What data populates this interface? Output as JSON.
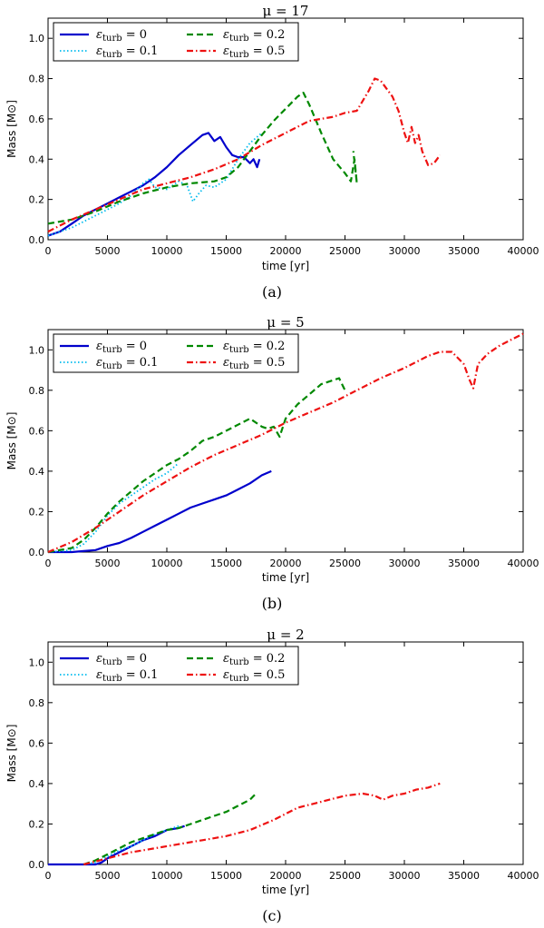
{
  "chart_data": [
    {
      "type": "line",
      "title": "μ = 17",
      "xlabel": "time [yr]",
      "ylabel": "Mass [M⊙]",
      "xlim": [
        0,
        40000
      ],
      "ylim": [
        0,
        1.1
      ],
      "xticks": [
        "0",
        "5000",
        "10000",
        "15000",
        "20000",
        "25000",
        "30000",
        "35000",
        "40000"
      ],
      "yticks": [
        "0.0",
        "0.2",
        "0.4",
        "0.6",
        "0.8",
        "1.0"
      ],
      "caption": "(a)",
      "series": [
        {
          "name": "ε_turb = 0",
          "legend_symbol": "ε",
          "legend_sub": "turb",
          "legend_value": " = 0",
          "color": "#0000cc",
          "style": "solid",
          "x": [
            0,
            1000,
            2000,
            3000,
            4000,
            5000,
            6000,
            7000,
            8000,
            9000,
            10000,
            11000,
            12000,
            13000,
            13500,
            14000,
            14500,
            15000,
            15500,
            16000,
            16500,
            17000,
            17300,
            17600,
            17800
          ],
          "y": [
            0.02,
            0.04,
            0.08,
            0.12,
            0.15,
            0.18,
            0.21,
            0.24,
            0.27,
            0.31,
            0.36,
            0.42,
            0.47,
            0.52,
            0.53,
            0.49,
            0.51,
            0.46,
            0.42,
            0.41,
            0.41,
            0.38,
            0.4,
            0.36,
            0.4
          ]
        },
        {
          "name": "ε_turb = 0.1",
          "legend_symbol": "ε",
          "legend_sub": "turb",
          "legend_value": " = 0.1",
          "color": "#00bbee",
          "style": "dotted",
          "x": [
            0,
            2000,
            4000,
            6000,
            7000,
            8000,
            8500,
            9000,
            10000,
            11000,
            11700,
            12200,
            12700,
            13300,
            14000,
            15000,
            16000,
            17000,
            18000
          ],
          "y": [
            0.02,
            0.06,
            0.12,
            0.18,
            0.22,
            0.28,
            0.3,
            0.26,
            0.25,
            0.29,
            0.27,
            0.19,
            0.23,
            0.27,
            0.26,
            0.3,
            0.4,
            0.48,
            0.53
          ]
        },
        {
          "name": "ε_turb = 0.2",
          "legend_symbol": "ε",
          "legend_sub": "turb",
          "legend_value": " = 0.2",
          "color": "#008800",
          "style": "dashed",
          "x": [
            0,
            2000,
            4000,
            6000,
            8000,
            10000,
            12000,
            14000,
            15000,
            16000,
            17000,
            18000,
            19000,
            20000,
            21000,
            21500,
            22000,
            23000,
            24000,
            25000,
            25500,
            25800,
            26000,
            25700
          ],
          "y": [
            0.08,
            0.1,
            0.14,
            0.19,
            0.23,
            0.26,
            0.28,
            0.29,
            0.31,
            0.36,
            0.44,
            0.52,
            0.59,
            0.65,
            0.71,
            0.73,
            0.67,
            0.53,
            0.4,
            0.33,
            0.29,
            0.4,
            0.28,
            0.44
          ]
        },
        {
          "name": "ε_turb = 0.5",
          "legend_symbol": "ε",
          "legend_sub": "turb",
          "legend_value": " = 0.5",
          "color": "#ee1111",
          "style": "dashdot",
          "x": [
            0,
            2000,
            4000,
            6000,
            8000,
            10000,
            12000,
            14000,
            16000,
            18000,
            20000,
            22000,
            24000,
            25000,
            26000,
            27000,
            27500,
            28000,
            29000,
            29500,
            30000,
            30300,
            30600,
            30900,
            31200,
            31500,
            32000,
            32500,
            33000
          ],
          "y": [
            0.04,
            0.1,
            0.15,
            0.2,
            0.25,
            0.28,
            0.31,
            0.35,
            0.4,
            0.47,
            0.53,
            0.59,
            0.61,
            0.63,
            0.64,
            0.74,
            0.8,
            0.79,
            0.71,
            0.64,
            0.53,
            0.48,
            0.56,
            0.48,
            0.52,
            0.44,
            0.37,
            0.38,
            0.42
          ]
        }
      ]
    },
    {
      "type": "line",
      "title": "μ = 5",
      "xlabel": "time [yr]",
      "ylabel": "Mass [M⊙]",
      "xlim": [
        0,
        40000
      ],
      "ylim": [
        0,
        1.1
      ],
      "xticks": [
        "0",
        "5000",
        "10000",
        "15000",
        "20000",
        "25000",
        "30000",
        "35000",
        "40000"
      ],
      "yticks": [
        "0.0",
        "0.2",
        "0.4",
        "0.6",
        "0.8",
        "1.0"
      ],
      "caption": "(b)",
      "series": [
        {
          "name": "ε_turb = 0",
          "legend_symbol": "ε",
          "legend_sub": "turb",
          "legend_value": " = 0",
          "color": "#0000cc",
          "style": "solid",
          "x": [
            0,
            2000,
            3000,
            4000,
            5000,
            6000,
            7000,
            8000,
            9000,
            10000,
            11000,
            12000,
            13000,
            14000,
            15000,
            16000,
            17000,
            18000,
            18800
          ],
          "y": [
            0.0,
            0.0,
            0.005,
            0.01,
            0.03,
            0.045,
            0.07,
            0.1,
            0.13,
            0.16,
            0.19,
            0.22,
            0.24,
            0.26,
            0.28,
            0.31,
            0.34,
            0.38,
            0.4
          ]
        },
        {
          "name": "ε_turb = 0.1",
          "legend_symbol": "ε",
          "legend_sub": "turb",
          "legend_value": " = 0.1",
          "color": "#00bbee",
          "style": "dotted",
          "x": [
            0,
            2000,
            3000,
            4000,
            5000,
            6000,
            7000,
            8000,
            9000,
            10000,
            11000
          ],
          "y": [
            0.0,
            0.01,
            0.04,
            0.1,
            0.18,
            0.24,
            0.28,
            0.32,
            0.36,
            0.39,
            0.44
          ]
        },
        {
          "name": "ε_turb = 0.2",
          "legend_symbol": "ε",
          "legend_sub": "turb",
          "legend_value": " = 0.2",
          "color": "#008800",
          "style": "dashed",
          "x": [
            0,
            2000,
            3000,
            4000,
            5000,
            6000,
            7000,
            8000,
            9000,
            10000,
            11000,
            12000,
            13000,
            14000,
            15000,
            16000,
            17000,
            18000,
            18500,
            19000,
            19500,
            20000,
            21000,
            22000,
            23000,
            24000,
            24500,
            25000
          ],
          "y": [
            0.0,
            0.02,
            0.06,
            0.12,
            0.19,
            0.25,
            0.3,
            0.35,
            0.39,
            0.43,
            0.46,
            0.5,
            0.55,
            0.57,
            0.6,
            0.63,
            0.66,
            0.62,
            0.61,
            0.62,
            0.57,
            0.66,
            0.73,
            0.78,
            0.83,
            0.85,
            0.86,
            0.8
          ]
        },
        {
          "name": "ε_turb = 0.5",
          "legend_symbol": "ε",
          "legend_sub": "turb",
          "legend_value": " = 0.5",
          "color": "#ee1111",
          "style": "dashdot",
          "x": [
            0,
            2000,
            4000,
            6000,
            8000,
            10000,
            12000,
            14000,
            16000,
            18000,
            20000,
            22000,
            24000,
            26000,
            28000,
            30000,
            32000,
            33000,
            34000,
            35000,
            35500,
            35800,
            36200,
            37000,
            38000,
            39000,
            40000
          ],
          "y": [
            0.0,
            0.05,
            0.12,
            0.2,
            0.28,
            0.35,
            0.42,
            0.48,
            0.53,
            0.58,
            0.64,
            0.69,
            0.74,
            0.8,
            0.86,
            0.91,
            0.97,
            0.99,
            0.99,
            0.93,
            0.85,
            0.81,
            0.93,
            0.98,
            1.02,
            1.05,
            1.08
          ]
        }
      ]
    },
    {
      "type": "line",
      "title": "μ = 2",
      "xlabel": "time [yr]",
      "ylabel": "Mass [M⊙]",
      "xlim": [
        0,
        40000
      ],
      "ylim": [
        0,
        1.1
      ],
      "xticks": [
        "0",
        "5000",
        "10000",
        "15000",
        "20000",
        "25000",
        "30000",
        "35000",
        "40000"
      ],
      "yticks": [
        "0.0",
        "0.2",
        "0.4",
        "0.6",
        "0.8",
        "1.0"
      ],
      "caption": "(c)",
      "series": [
        {
          "name": "ε_turb = 0",
          "legend_symbol": "ε",
          "legend_sub": "turb",
          "legend_value": " = 0",
          "color": "#0000cc",
          "style": "solid",
          "x": [
            0,
            3000,
            4000,
            4500,
            5000,
            6000,
            7000,
            8000,
            9000,
            10000,
            11000,
            11500
          ],
          "y": [
            0.0,
            0.0,
            0.0,
            0.01,
            0.03,
            0.06,
            0.09,
            0.12,
            0.14,
            0.17,
            0.18,
            0.19
          ]
        },
        {
          "name": "ε_turb = 0.1",
          "legend_symbol": "ε",
          "legend_sub": "turb",
          "legend_value": " = 0.1",
          "color": "#00bbee",
          "style": "dotted",
          "x": [
            3000,
            4000,
            5000,
            6000,
            7000,
            8000,
            9000,
            10000,
            11000
          ],
          "y": [
            0.0,
            0.01,
            0.04,
            0.07,
            0.09,
            0.12,
            0.15,
            0.17,
            0.19
          ]
        },
        {
          "name": "ε_turb = 0.2",
          "legend_symbol": "ε",
          "legend_sub": "turb",
          "legend_value": " = 0.2",
          "color": "#008800",
          "style": "dashed",
          "x": [
            3000,
            4000,
            5000,
            6000,
            7000,
            8000,
            9000,
            10000,
            11000,
            12000,
            13000,
            14000,
            15000,
            16000,
            17000,
            17500
          ],
          "y": [
            0.0,
            0.02,
            0.05,
            0.08,
            0.11,
            0.13,
            0.15,
            0.17,
            0.18,
            0.2,
            0.22,
            0.24,
            0.26,
            0.29,
            0.32,
            0.35
          ]
        },
        {
          "name": "ε_turb = 0.5",
          "legend_symbol": "ε",
          "legend_sub": "turb",
          "legend_value": " = 0.5",
          "color": "#ee1111",
          "style": "dashdot",
          "x": [
            3000,
            5000,
            7000,
            9000,
            11000,
            13000,
            15000,
            17000,
            19000,
            21000,
            23000,
            25000,
            26500,
            27500,
            28200,
            29000,
            30000,
            31000,
            32000,
            33000
          ],
          "y": [
            0.0,
            0.03,
            0.06,
            0.08,
            0.1,
            0.12,
            0.14,
            0.17,
            0.22,
            0.28,
            0.31,
            0.34,
            0.35,
            0.34,
            0.32,
            0.34,
            0.35,
            0.37,
            0.38,
            0.4
          ]
        }
      ]
    }
  ]
}
